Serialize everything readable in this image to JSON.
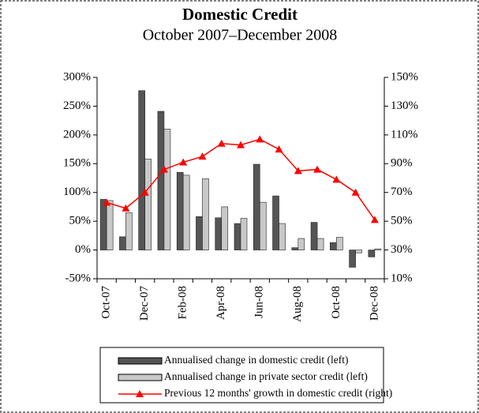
{
  "chart_data": {
    "type": "bar",
    "title": "Domestic Credit",
    "subtitle": "October 2007–December 2008",
    "categories": [
      "Oct-07",
      null,
      "Dec-07",
      null,
      "Feb-08",
      null,
      "Apr-08",
      null,
      "Jun-08",
      null,
      "Aug-08",
      null,
      "Oct-08",
      null,
      "Dec-08"
    ],
    "ylim": [
      -50,
      300
    ],
    "yticks": [
      {
        "value": -50,
        "label": "-50%"
      },
      {
        "value": 0,
        "label": "0%"
      },
      {
        "value": 50,
        "label": "50%"
      },
      {
        "value": 100,
        "label": "100%"
      },
      {
        "value": 150,
        "label": "150%"
      },
      {
        "value": 200,
        "label": "200%"
      },
      {
        "value": 250,
        "label": "250%"
      },
      {
        "value": 300,
        "label": "300%"
      }
    ],
    "y2lim": [
      10,
      150
    ],
    "y2ticks": [
      {
        "value": 10,
        "label": "10%"
      },
      {
        "value": 30,
        "label": "30%"
      },
      {
        "value": 50,
        "label": "50%"
      },
      {
        "value": 70,
        "label": "70%"
      },
      {
        "value": 90,
        "label": "90%"
      },
      {
        "value": 110,
        "label": "110%"
      },
      {
        "value": 130,
        "label": "130%"
      },
      {
        "value": 150,
        "label": "150%"
      }
    ],
    "series": [
      {
        "name": "Annualised change in domestic credit (left)",
        "type": "bar",
        "color": "#555555",
        "values": [
          88,
          23,
          277,
          241,
          135,
          58,
          56,
          46,
          149,
          94,
          4,
          48,
          13,
          -30,
          -12
        ]
      },
      {
        "name": "Annualised change in private sector credit (left)",
        "type": "bar",
        "color": "#c8c8c8",
        "values": [
          86,
          65,
          158,
          210,
          130,
          124,
          75,
          55,
          83,
          46,
          20,
          20,
          22,
          -5,
          2
        ]
      },
      {
        "name": "Previous 12 months' growth in domestic credit (right)",
        "type": "line",
        "color": "#ff0000",
        "axis": "y2",
        "values": [
          63,
          59,
          70,
          86,
          91,
          95,
          104,
          103,
          107,
          100,
          85,
          86,
          79,
          70,
          51
        ]
      }
    ]
  }
}
